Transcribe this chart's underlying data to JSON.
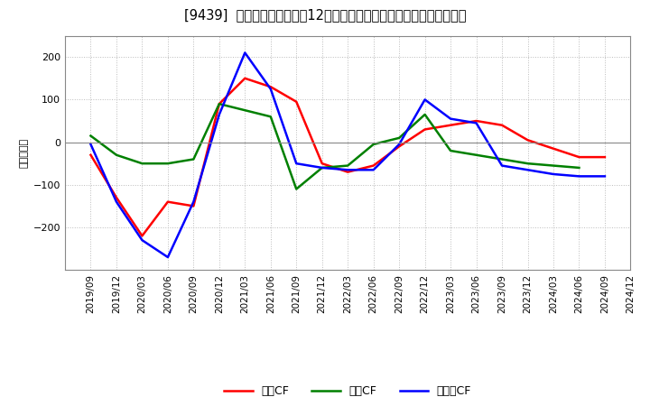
{
  "title": "[9439]  キャッシュフローの12か月移動合計の対前年同期増減額の推移",
  "ylabel": "（百万円）",
  "background_color": "#ffffff",
  "plot_bg_color": "#ffffff",
  "grid_color": "#bbbbbb",
  "x_labels": [
    "2019/09",
    "2019/12",
    "2020/03",
    "2020/06",
    "2020/09",
    "2020/12",
    "2021/03",
    "2021/06",
    "2021/09",
    "2021/12",
    "2022/03",
    "2022/06",
    "2022/09",
    "2022/12",
    "2023/03",
    "2023/06",
    "2023/09",
    "2023/12",
    "2024/03",
    "2024/06",
    "2024/09",
    "2024/12"
  ],
  "operating_cf": [
    -30,
    -130,
    -220,
    -140,
    -150,
    90,
    150,
    130,
    95,
    -50,
    -70,
    -55,
    -10,
    30,
    40,
    50,
    40,
    5,
    -15,
    -35,
    -35,
    null
  ],
  "investing_cf": [
    15,
    -30,
    -50,
    -50,
    -40,
    90,
    75,
    60,
    -110,
    -60,
    -55,
    -5,
    10,
    65,
    -20,
    -30,
    -40,
    -50,
    -55,
    -60,
    null,
    null
  ],
  "free_cf": [
    -5,
    -140,
    -230,
    -270,
    -140,
    65,
    210,
    125,
    -50,
    -60,
    -65,
    -65,
    -5,
    100,
    55,
    45,
    -55,
    -65,
    -75,
    -80,
    -80,
    null
  ],
  "ylim": [
    -300,
    250
  ],
  "yticks": [
    -200,
    -100,
    0,
    100,
    200
  ],
  "series_colors": {
    "operating": "#ff0000",
    "investing": "#008000",
    "free": "#0000ff"
  },
  "legend_labels": {
    "operating": "営業CF",
    "investing": "投資CF",
    "free": "フリーCF"
  },
  "line_width": 1.8
}
